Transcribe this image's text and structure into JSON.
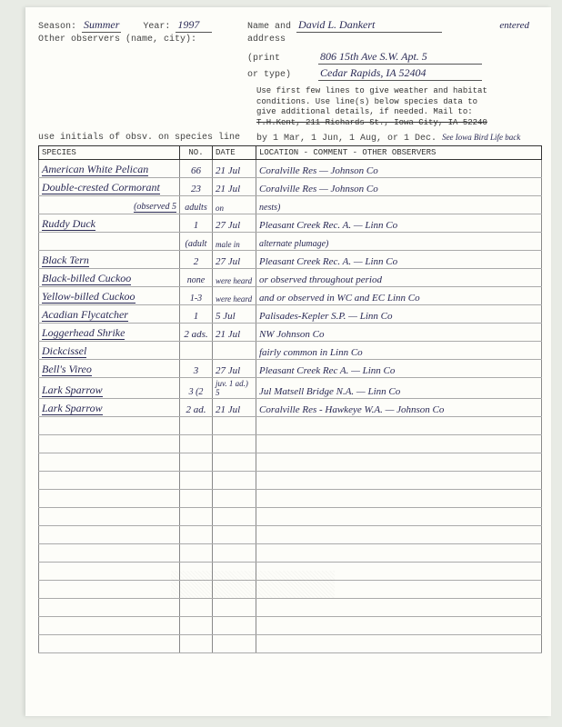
{
  "header": {
    "season_label": "Season:",
    "season_value": "Summer",
    "year_label": "Year:",
    "year_value": "1997",
    "other_obs_label": "Other observers (name, city):",
    "name_label": "Name and",
    "name_value": "David L. Dankert",
    "address_label": "address",
    "print_label": "(print",
    "ortype_label": "or type)",
    "street": "806 15th Ave S.W. Apt. 5",
    "city": "Cedar Rapids, IA  52404",
    "entered": "entered"
  },
  "instructions": {
    "line1": "Use first few lines to give weather and habitat",
    "line2": "conditions. Use line(s) below species data to",
    "line3": "give additional details, if needed. Mail to:",
    "line4_struck": "T.H.Kent, 211 Richards St., Iowa City, IA 52240",
    "line5a": "use initials of obsv. on species line",
    "line5b": "by 1 Mar, 1 Jun, 1 Aug, or 1 Dec.",
    "line5c": "See Iowa Bird Life back"
  },
  "table": {
    "headers": {
      "species": "SPECIES",
      "no": "NO.",
      "date": "DATE",
      "location": "LOCATION - COMMENT - OTHER OBSERVERS"
    },
    "rows": [
      {
        "s": "American White Pelican",
        "n": "66",
        "d": "21 Jul",
        "l": "Coralville Res — Johnson Co"
      },
      {
        "s": "Double-crested Cormorant",
        "n": "23",
        "d": "21 Jul",
        "l": "Coralville Res — Johnson Co"
      },
      {
        "s": "",
        "n": "",
        "d": "",
        "l": "",
        "note_s": "(observed 5",
        "note_n": "adults",
        "note_d": "on",
        "note_l": "nests)"
      },
      {
        "s": "Ruddy Duck",
        "n": "1",
        "d": "27 Jul",
        "l": "Pleasant Creek Rec. A. — Linn Co"
      },
      {
        "s": "",
        "n": "",
        "d": "",
        "l": "",
        "note_n": "(adult",
        "note_d": "male in",
        "note_l": "alternate plumage)"
      },
      {
        "s": "Black Tern",
        "n": "2",
        "d": "27 Jul",
        "l": "Pleasant Creek Rec. A. — Linn Co"
      },
      {
        "s": "Black-billed Cuckoo",
        "n": "none",
        "d": "were heard",
        "l": "or observed throughout period",
        "spill": true
      },
      {
        "s": "Yellow-billed Cuckoo",
        "n": "1-3",
        "d": "were heard",
        "l": "and or observed in WC and EC Linn Co",
        "spill": true
      },
      {
        "s": "Acadian Flycatcher",
        "n": "1",
        "d": "5 Jul",
        "l": "Palisades-Kepler S.P. — Linn Co"
      },
      {
        "s": "Loggerhead Shrike",
        "n": "2 ads.",
        "d": "21 Jul",
        "l": "NW Johnson Co"
      },
      {
        "s": "Dickcissel",
        "n": "",
        "d": "",
        "l": "fairly common in Linn Co"
      },
      {
        "s": "Bell's Vireo",
        "n": "3",
        "d": "27 Jul",
        "l": "Pleasant Creek Rec A. — Linn Co"
      },
      {
        "s": "Lark Sparrow",
        "n": "3 (2",
        "d": "juv. 1 ad.) 5",
        "l": "Jul   Matsell Bridge N.A. — Linn Co",
        "spill": true
      },
      {
        "s": "Lark Sparrow",
        "n": "2 ad.",
        "d": "21 Jul",
        "l": "Coralville Res - Hawkeye W.A. — Johnson Co"
      },
      {
        "s": "",
        "n": "",
        "d": "",
        "l": ""
      },
      {
        "s": "",
        "n": "",
        "d": "",
        "l": ""
      },
      {
        "s": "",
        "n": "",
        "d": "",
        "l": ""
      },
      {
        "s": "",
        "n": "",
        "d": "",
        "l": ""
      },
      {
        "s": "",
        "n": "",
        "d": "",
        "l": ""
      },
      {
        "s": "",
        "n": "",
        "d": "",
        "l": ""
      },
      {
        "s": "",
        "n": "",
        "d": "",
        "l": ""
      },
      {
        "s": "",
        "n": "",
        "d": "",
        "l": ""
      },
      {
        "s": "",
        "n": "",
        "d": "",
        "l": ""
      },
      {
        "s": "",
        "n": "",
        "d": "",
        "l": ""
      },
      {
        "s": "",
        "n": "",
        "d": "",
        "l": ""
      },
      {
        "s": "",
        "n": "",
        "d": "",
        "l": ""
      },
      {
        "s": "",
        "n": "",
        "d": "",
        "l": ""
      }
    ]
  }
}
